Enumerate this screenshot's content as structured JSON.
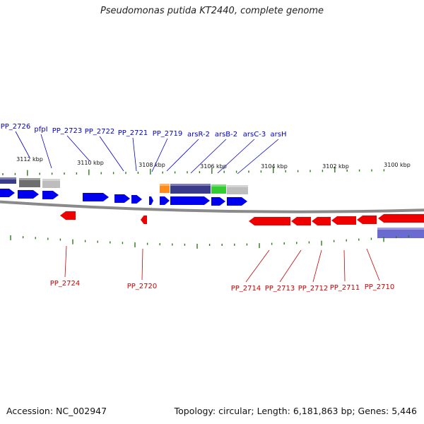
{
  "title": "Pseudomonas putida KT2440, complete genome",
  "footer": {
    "accession": "Accession: NC_002947",
    "stats": "Topology: circular; Length: 6,181,863 bp; Genes: 5,446"
  },
  "scale_labels": [
    "3112 kbp",
    "3110 kbp",
    "3108 kbp",
    "3106 kbp",
    "3104 kbp",
    "3102 kbp",
    "3100 kbp"
  ],
  "forward_labels": [
    "PP_2726",
    "pfpI",
    "PP_2723",
    "PP_2722",
    "PP_2721",
    "PP_2719",
    "arsR-2",
    "arsB-2",
    "arsC-3",
    "arsH"
  ],
  "reverse_labels": [
    "PP_2724",
    "PP_2720",
    "PP_2714",
    "PP_2713",
    "PP_2712",
    "PP_2711",
    "PP_2710"
  ],
  "colors": {
    "forward": "#0000ee",
    "reverse": "#ee0000",
    "forward_label": "#0000cc",
    "reverse_label": "#cc0000",
    "tick": "#2a7a1a",
    "backbone": "#8a8a8a",
    "cog_gray": "#6e6e6e",
    "cog_light": "#bdbdbd",
    "cog_orange": "#ff8c1a",
    "cog_navy": "#3a3a8a",
    "cog_green": "#33cc33",
    "cog_purple": "#6a6ad0"
  }
}
